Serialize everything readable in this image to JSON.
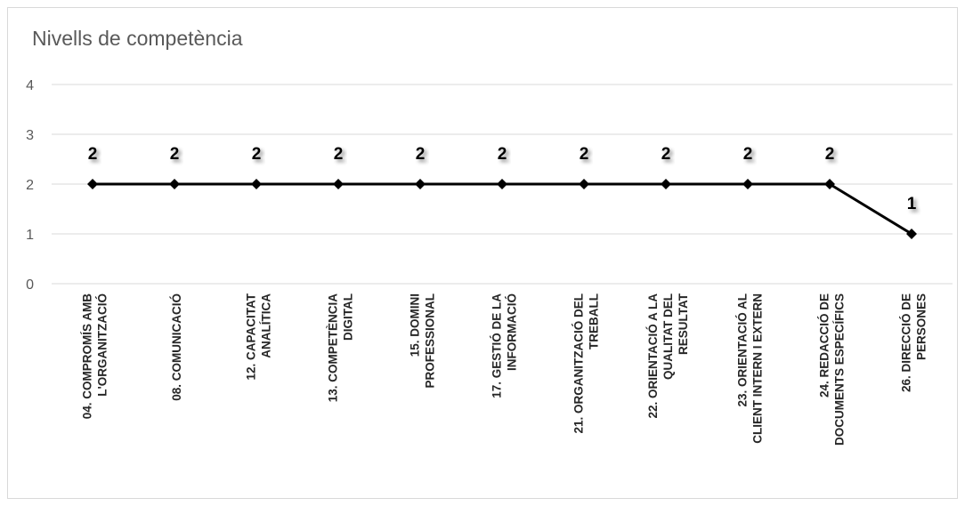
{
  "chart_data": {
    "type": "line",
    "title": "Nivells de competència",
    "xlabel": "",
    "ylabel": "",
    "ylim": [
      0,
      4
    ],
    "yticks": [
      0,
      1,
      2,
      3,
      4
    ],
    "grid": true,
    "legend": "none",
    "colors": {
      "line": "#000000",
      "grid": "#d9d9d9",
      "text": "#595959"
    },
    "categories": [
      [
        "04. COMPROMÍS AMB",
        "L'ORGANITZACIÓ"
      ],
      [
        "08. COMUNICACIÓ"
      ],
      [
        "12. CAPACITAT",
        "ANALÍTICA"
      ],
      [
        "13. COMPETÈNCIA",
        "DIGITAL"
      ],
      [
        "15. DOMINI",
        "PROFESSIONAL"
      ],
      [
        "17. GESTIÓ DE LA",
        "INFORMACIÓ"
      ],
      [
        "21. ORGANITZACIÓ DEL",
        "TREBALL"
      ],
      [
        "22. ORIENTACIÓ A LA",
        "QUALITAT DEL",
        "RESULTAT"
      ],
      [
        "23. ORIENTACIÓ AL",
        "CLIENT INTERN I EXTERN"
      ],
      [
        "24. REDACCIÓ DE",
        "DOCUMENTS ESPECÍFICS"
      ],
      [
        "26. DIRECCIÓ DE",
        "PERSONES"
      ]
    ],
    "values": [
      2,
      2,
      2,
      2,
      2,
      2,
      2,
      2,
      2,
      2,
      1
    ]
  }
}
